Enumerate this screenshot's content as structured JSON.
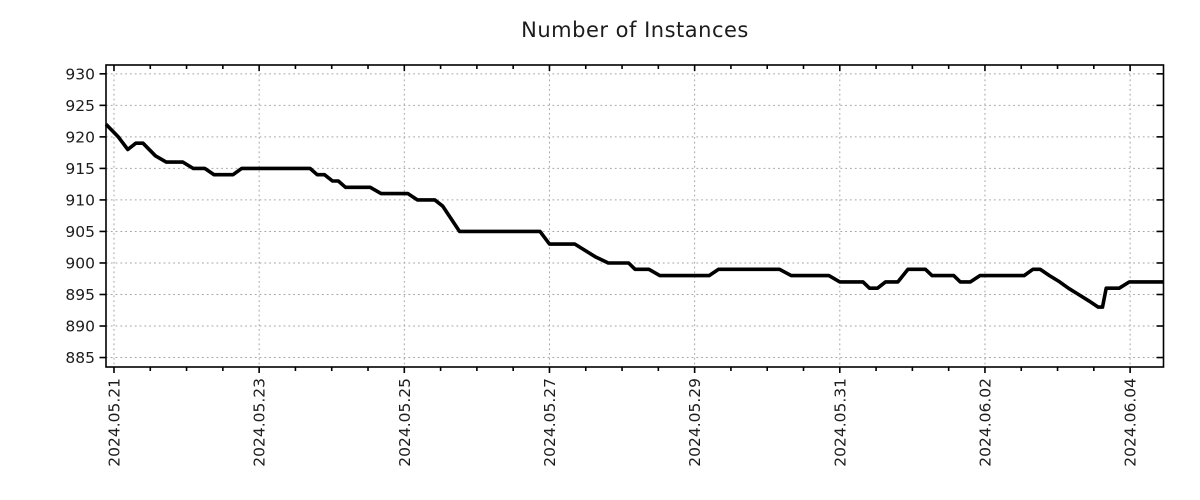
{
  "window": {
    "title": "Number of Instances"
  },
  "colors": {
    "background": "#ffffff",
    "series_line": "#000000",
    "grid": "#a6a6a6",
    "axis": "#000000",
    "text": "#1c1c1c"
  },
  "chart_data": {
    "type": "line",
    "title": "Number of Instances",
    "legend": "none",
    "grid": "dotted",
    "x_axis": {
      "label": "",
      "unit": "date",
      "tick_labels": [
        "2024.05.21",
        "2024.05.23",
        "2024.05.25",
        "2024.05.27",
        "2024.05.29",
        "2024.05.31",
        "2024.06.02",
        "2024.06.04"
      ],
      "tick_positions_days": [
        0,
        2,
        4,
        6,
        8,
        10,
        12,
        14
      ],
      "minor_tick_interval_days": 0.5,
      "range_days": [
        -0.11,
        14.46
      ],
      "labels_rotated_degrees": 90
    },
    "y_axis": {
      "label": "",
      "ticks": [
        885,
        890,
        895,
        900,
        905,
        910,
        915,
        920,
        925,
        930
      ],
      "range": [
        883.5,
        931.4
      ]
    },
    "series": [
      {
        "name": "instances",
        "color": "#000000",
        "points_days_value": [
          [
            -0.11,
            922
          ],
          [
            0.06,
            920
          ],
          [
            0.19,
            918
          ],
          [
            0.3,
            919
          ],
          [
            0.4,
            919
          ],
          [
            0.57,
            917
          ],
          [
            0.72,
            916
          ],
          [
            0.95,
            916
          ],
          [
            1.09,
            915
          ],
          [
            1.25,
            915
          ],
          [
            1.38,
            914
          ],
          [
            1.64,
            914
          ],
          [
            1.76,
            915
          ],
          [
            2.7,
            915
          ],
          [
            2.8,
            914
          ],
          [
            2.9,
            914
          ],
          [
            3.01,
            913
          ],
          [
            3.09,
            913
          ],
          [
            3.19,
            912
          ],
          [
            3.53,
            912
          ],
          [
            3.68,
            911
          ],
          [
            4.05,
            911
          ],
          [
            4.18,
            910
          ],
          [
            4.42,
            910
          ],
          [
            4.53,
            909
          ],
          [
            4.76,
            905
          ],
          [
            5.87,
            905
          ],
          [
            6.0,
            903
          ],
          [
            6.35,
            903
          ],
          [
            6.63,
            901
          ],
          [
            6.81,
            900
          ],
          [
            7.09,
            900
          ],
          [
            7.18,
            899
          ],
          [
            7.37,
            899
          ],
          [
            7.52,
            898
          ],
          [
            8.2,
            898
          ],
          [
            8.33,
            899
          ],
          [
            9.17,
            899
          ],
          [
            9.33,
            898
          ],
          [
            9.85,
            898
          ],
          [
            10.0,
            897
          ],
          [
            10.32,
            897
          ],
          [
            10.41,
            896
          ],
          [
            10.52,
            896
          ],
          [
            10.63,
            897
          ],
          [
            10.8,
            897
          ],
          [
            10.94,
            899
          ],
          [
            11.18,
            899
          ],
          [
            11.27,
            898
          ],
          [
            11.57,
            898
          ],
          [
            11.66,
            897
          ],
          [
            11.8,
            897
          ],
          [
            11.93,
            898
          ],
          [
            12.54,
            898
          ],
          [
            12.66,
            899
          ],
          [
            12.76,
            899
          ],
          [
            12.89,
            898
          ],
          [
            13.03,
            897
          ],
          [
            13.15,
            896
          ],
          [
            13.29,
            895
          ],
          [
            13.43,
            894
          ],
          [
            13.56,
            893
          ],
          [
            13.62,
            893
          ],
          [
            13.67,
            896
          ],
          [
            13.85,
            896
          ],
          [
            13.99,
            897
          ],
          [
            14.46,
            897
          ]
        ]
      }
    ]
  }
}
